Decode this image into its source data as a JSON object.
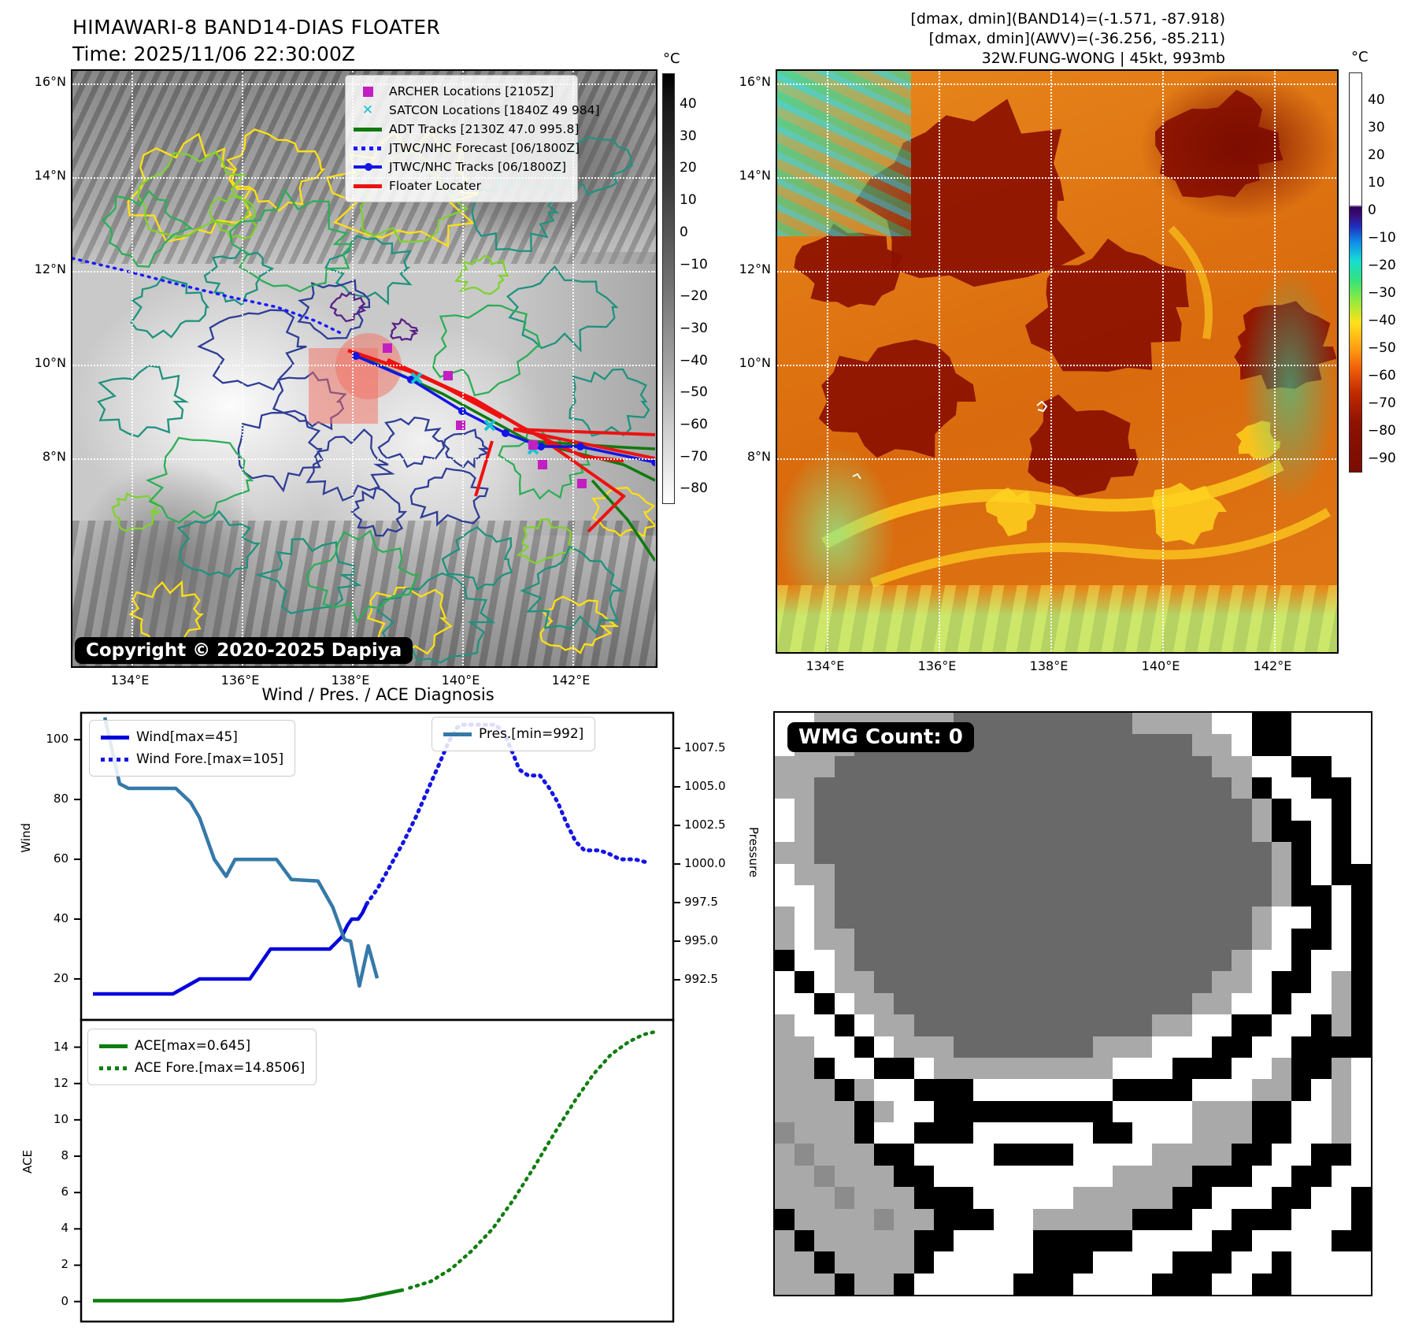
{
  "header": {
    "title": "HIMAWARI-8 BAND14-DIAS FLOATER",
    "time": "Time: 2025/11/06 22:30:00Z",
    "info_lines": [
      "[dmax, dmin](BAND14)=(-1.571, -87.918)",
      "[dmax, dmin](AWV)=(-36.256, -85.211)",
      "32W.FUNG-WONG | 45kt, 993mb"
    ]
  },
  "left_map": {
    "x_ticks": [
      "134°E",
      "136°E",
      "138°E",
      "140°E",
      "142°E"
    ],
    "y_ticks": [
      "16°N",
      "14°N",
      "12°N",
      "10°N",
      "8°N"
    ],
    "legend": [
      {
        "label": "ARCHER Locations [2105Z]",
        "marker": "square",
        "color": "#c21fc2"
      },
      {
        "label": "SATCON Locations [1840Z 49 984]",
        "marker": "x",
        "color": "#17c3cf"
      },
      {
        "label": "ADT Tracks [2130Z 47.0 995.8]",
        "marker": "line",
        "color": "#0e7a0e"
      },
      {
        "label": "JTWC/NHC Forecast [06/1800Z]",
        "marker": "dotted",
        "color": "#1a1aff"
      },
      {
        "label": "JTWC/NHC Tracks [06/1800Z]",
        "marker": "line-dot",
        "color": "#1414e6"
      },
      {
        "label": "Floater Locater",
        "marker": "line",
        "color": "#ee1111"
      }
    ],
    "copyright": "Copyright © 2020-2025 Dapiya",
    "colorbar": {
      "unit": "°C",
      "ticks": [
        "40",
        "30",
        "20",
        "10",
        "0",
        "−10",
        "−20",
        "−30",
        "−40",
        "−50",
        "−60",
        "−70",
        "−80"
      ]
    },
    "contour_palette": {
      "navy": "#2e3d96",
      "slate": "#23637d",
      "teal": "#1f927f",
      "green": "#2eae57",
      "lime": "#7fd22c",
      "yellow": "#ffdf12",
      "purple": "#5a1f86"
    },
    "floater_color": "rgba(244,110,95,0.5)"
  },
  "right_map": {
    "x_ticks": [
      "134°E",
      "136°E",
      "138°E",
      "140°E",
      "142°E"
    ],
    "y_ticks": [
      "16°N",
      "14°N",
      "12°N",
      "10°N",
      "8°N"
    ],
    "colorbar": {
      "unit": "°C",
      "ticks": [
        "40",
        "30",
        "20",
        "10",
        "0",
        "−10",
        "−20",
        "−30",
        "−40",
        "−50",
        "−60",
        "−70",
        "−80",
        "−90"
      ]
    },
    "palette": {
      "darkred": "#8c1000",
      "orange": "#e07816",
      "yellow": "#ffd21f",
      "green": "#35e27a",
      "cyan": "#35d2e0",
      "band_green": "#8dee8d"
    }
  },
  "diagnosis": {
    "title": "Wind / Pres. / ACE Diagnosis"
  },
  "chart_data": [
    {
      "type": "line",
      "xlim": [
        0,
        1
      ],
      "axes": {
        "left": {
          "label": "Wind",
          "ylim": [
            6.3,
            109
          ],
          "ticks": [
            [
              20,
              "20"
            ],
            [
              40,
              "40"
            ],
            [
              60,
              "60"
            ],
            [
              80,
              "80"
            ],
            [
              100,
              "100"
            ]
          ]
        },
        "right": {
          "label": "Pressure",
          "ylim": [
            989.9,
            1009.8
          ],
          "ticks": [
            [
              992.5,
              "992.5"
            ],
            [
              995.0,
              "995.0"
            ],
            [
              997.5,
              "997.5"
            ],
            [
              1000.0,
              "1000.0"
            ],
            [
              1002.5,
              "1002.5"
            ],
            [
              1005.0,
              "1005.0"
            ],
            [
              1007.5,
              "1007.5"
            ]
          ]
        }
      },
      "series": [
        {
          "name": "Wind[max=45]",
          "axis": "left",
          "style": "solid",
          "color": "#0000dd",
          "width": 4.5,
          "points": [
            [
              0.02,
              15
            ],
            [
              0.155,
              15
            ],
            [
              0.2,
              20
            ],
            [
              0.285,
              20
            ],
            [
              0.32,
              30
            ],
            [
              0.42,
              30
            ],
            [
              0.44,
              34
            ],
            [
              0.45,
              38
            ],
            [
              0.457,
              40
            ],
            [
              0.468,
              40
            ],
            [
              0.475,
              42
            ],
            [
              0.482,
              45
            ]
          ]
        },
        {
          "name": "Wind Fore.[max=105]",
          "axis": "left",
          "style": "dotted",
          "color": "#1414e6",
          "width": 5,
          "points": [
            [
              0.482,
              45
            ],
            [
              0.5,
              50
            ],
            [
              0.52,
              57
            ],
            [
              0.545,
              66
            ],
            [
              0.565,
              74
            ],
            [
              0.585,
              83
            ],
            [
              0.605,
              92
            ],
            [
              0.62,
              99
            ],
            [
              0.635,
              104
            ],
            [
              0.645,
              105
            ],
            [
              0.7,
              105
            ],
            [
              0.715,
              102
            ],
            [
              0.73,
              95
            ],
            [
              0.74,
              90
            ],
            [
              0.755,
              88
            ],
            [
              0.775,
              88
            ],
            [
              0.79,
              84
            ],
            [
              0.805,
              79
            ],
            [
              0.82,
              72
            ],
            [
              0.835,
              66
            ],
            [
              0.85,
              63
            ],
            [
              0.875,
              63
            ],
            [
              0.89,
              62
            ],
            [
              0.91,
              60
            ],
            [
              0.935,
              60
            ],
            [
              0.955,
              59
            ]
          ]
        },
        {
          "name": "Pres.[min=992]",
          "axis": "right",
          "style": "solid",
          "color": "#3579a8",
          "width": 4.5,
          "points": [
            [
              0.04,
              1009.5
            ],
            [
              0.065,
              1005.2
            ],
            [
              0.08,
              1004.9
            ],
            [
              0.16,
              1004.9
            ],
            [
              0.185,
              1004
            ],
            [
              0.2,
              1003
            ],
            [
              0.225,
              1000.3
            ],
            [
              0.245,
              999.2
            ],
            [
              0.26,
              1000.3
            ],
            [
              0.33,
              1000.3
            ],
            [
              0.355,
              999
            ],
            [
              0.4,
              998.9
            ],
            [
              0.425,
              997.2
            ],
            [
              0.445,
              995.1
            ],
            [
              0.455,
              995.0
            ],
            [
              0.47,
              992.1
            ],
            [
              0.485,
              994.7
            ],
            [
              0.5,
              992.6
            ]
          ]
        }
      ]
    },
    {
      "type": "line",
      "xlim": [
        0,
        1
      ],
      "axes": {
        "left": {
          "label": "ACE",
          "ylim": [
            -1.1,
            15.5
          ],
          "ticks": [
            [
              0,
              "0"
            ],
            [
              2,
              "2"
            ],
            [
              4,
              "4"
            ],
            [
              6,
              "6"
            ],
            [
              8,
              "8"
            ],
            [
              10,
              "10"
            ],
            [
              12,
              "12"
            ],
            [
              14,
              "14"
            ]
          ]
        }
      },
      "series": [
        {
          "name": "ACE[max=0.645]",
          "axis": "left",
          "style": "solid",
          "color": "#0e7e0e",
          "width": 4.5,
          "points": [
            [
              0.02,
              0.05
            ],
            [
              0.44,
              0.05
            ],
            [
              0.47,
              0.15
            ],
            [
              0.5,
              0.35
            ],
            [
              0.545,
              0.645
            ]
          ]
        },
        {
          "name": "ACE Fore.[max=14.8506]",
          "axis": "left",
          "style": "dotted",
          "color": "#0e7e0e",
          "width": 4.5,
          "points": [
            [
              0.555,
              0.75
            ],
            [
              0.59,
              1.1
            ],
            [
              0.625,
              1.8
            ],
            [
              0.66,
              2.8
            ],
            [
              0.695,
              4.0
            ],
            [
              0.73,
              5.6
            ],
            [
              0.765,
              7.4
            ],
            [
              0.8,
              9.3
            ],
            [
              0.835,
              11.1
            ],
            [
              0.865,
              12.5
            ],
            [
              0.895,
              13.6
            ],
            [
              0.925,
              14.3
            ],
            [
              0.95,
              14.7
            ],
            [
              0.97,
              14.85
            ]
          ]
        }
      ]
    }
  ],
  "wmg": {
    "label": "WMG Count: 0",
    "palette": {
      "W": "#ffffff",
      "A": "#a9a9a9",
      "D": "#696969",
      "K": "#000000",
      "M": "#8c8c8c"
    },
    "rows": [
      "WWAAAAAAADDDDDDDDDAAAAWWKKWWWW",
      "WAAADDDDDDDDDDDDDDDDDAAWKKWWWW",
      "AAADDDDDDDDDDDDDDDDDDDAAWWKKWW",
      "AADDDDDDDDDDDDDDDDDDDDDAKWWKKW",
      "WADDDDDDDDDDDDDDDDDDDDDDAKWWKW",
      "WADDDDDDDDDDDDDDDDDDDDDDAKKWKW",
      "AADDDDDDDDDDDDDDDDDDDDDDDAKWKW",
      "WAADDDDDDDDDDDDDDDDDDDDDDAKWKK",
      "WWADDDDDDDDDDDDDDDDDDDDDDAKKWK",
      "AWADDDDDDDDDDDDDDDDDDDDDAWWKWK",
      "AWAADDDDDDDDDDDDDDDDDDDDAWKKWK",
      "KWWADDDDDDDDDDDDDDDDDDDAWWKWWK",
      "WKWAADDDDDDDDDDDDDDDDDAAWKKWAK",
      "WWKWAADDDDDDDDDDDDDDDAAWWKWWAK",
      "AWWKWAADDDDDDDDDDDDAAWWKKWWKAK",
      "AAWWKWAAADDDDDDDAAAWWWKKWWKKKK",
      "AAKWWKKWAAAAAAAAAWWWKKKWWAKKAW",
      "AAAKAWWKKKWWWWWWWKKKKWWWAAKWAW",
      "AAAAKAWWKKKKKKKKKWWWWAAAKKWWAW",
      "MAAAKWWKKKWWWWWWKKWWWAAAKKWWAW",
      "AMAAAKKWWWWKKKKWWWWAAAAKKWWKKW",
      "AAMAAAKKWWWWWWWWWAAAAKKKWWKKWW",
      "AAAMAAAKKKWWWWWAAAAAKKWWWKKWWK",
      "KAAAAMAAKKKWWAAAAAKKKWWKKKWWWK",
      "AKAAAAAKKWWWWKKKKKWWWWKKWWWWKK",
      "AAKAAAAKWWWWWKKKWWWWKKKWWKWWWW",
      "AAAKAAKWWWWWKKKWWWWKKKWWKKWWWW"
    ]
  }
}
